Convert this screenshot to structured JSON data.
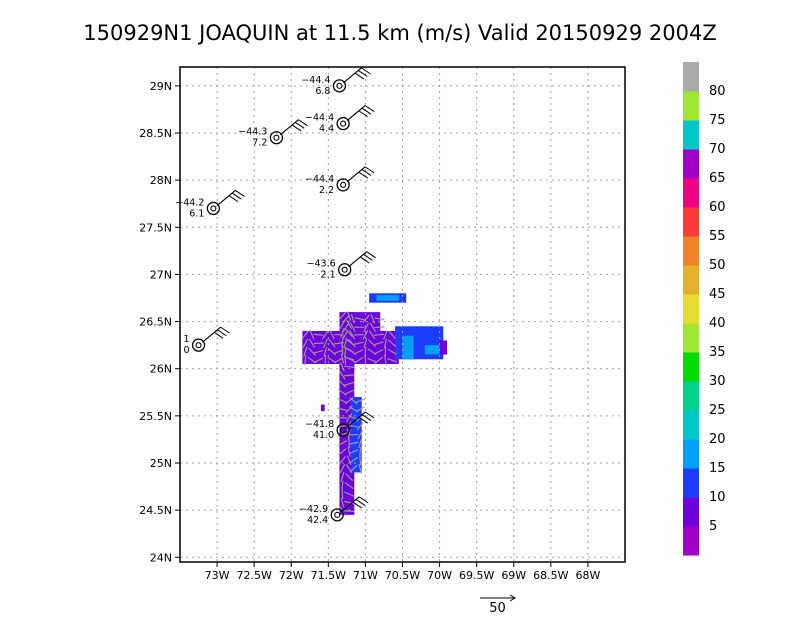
{
  "chart_data": {
    "type": "heatmap",
    "title": "150929N1  JOAQUIN at 11.5 km (m/s) Valid 20150929  2004Z",
    "x_ticks": [
      "73W",
      "72.5W",
      "72W",
      "71.5W",
      "71W",
      "70.5W",
      "70W",
      "69.5W",
      "69W",
      "68.5W",
      "68W"
    ],
    "y_ticks": [
      "24N",
      "24.5N",
      "25N",
      "25.5N",
      "26N",
      "26.5N",
      "27N",
      "27.5N",
      "28N",
      "28.5N",
      "29N"
    ],
    "xlim": [
      -73.5,
      -67.5
    ],
    "ylim": [
      23.95,
      29.2
    ],
    "grid": true,
    "colorbar": {
      "ticks": [
        "5",
        "10",
        "15",
        "20",
        "25",
        "30",
        "35",
        "40",
        "45",
        "50",
        "55",
        "60",
        "65",
        "70",
        "75",
        "80"
      ],
      "colors": [
        "#a000c8",
        "#6e00dc",
        "#1e3cff",
        "#00a0ff",
        "#00c8c8",
        "#00d28c",
        "#00dc00",
        "#a0e632",
        "#e6dc32",
        "#e6af2d",
        "#f08228",
        "#fa3c3c",
        "#f00082",
        "#a000c8",
        "#00c8c8",
        "#a0e632",
        "#aaaaaa"
      ]
    },
    "reference_vector": {
      "label": "50",
      "speed": 50
    },
    "observations": [
      {
        "lon": -71.35,
        "lat": 29.0,
        "top": "−44.4",
        "bottom": "6.8"
      },
      {
        "lon": -71.3,
        "lat": 28.6,
        "top": "−44.4",
        "bottom": "4.4"
      },
      {
        "lon": -72.2,
        "lat": 28.45,
        "top": "−44.3",
        "bottom": "7.2"
      },
      {
        "lon": -71.3,
        "lat": 27.95,
        "top": "−44.4",
        "bottom": "2.2"
      },
      {
        "lon": -73.05,
        "lat": 27.7,
        "top": "−44.2",
        "bottom": "6.1"
      },
      {
        "lon": -71.28,
        "lat": 27.05,
        "top": "−43.6",
        "bottom": "2.1"
      },
      {
        "lon": -73.25,
        "lat": 26.25,
        "top": "1",
        "bottom": "0"
      },
      {
        "lon": -71.3,
        "lat": 25.35,
        "top": "−41.8",
        "bottom": "41.0"
      },
      {
        "lon": -71.38,
        "lat": 24.45,
        "top": "−42.9",
        "bottom": "42.4"
      }
    ],
    "wind_field": [
      {
        "lon0": -71.35,
        "lon1": -71.15,
        "lat0": 24.45,
        "lat1": 26.6,
        "speed": 5
      },
      {
        "lon0": -71.85,
        "lon1": -70.55,
        "lat0": 26.05,
        "lat1": 26.4,
        "speed": 5
      },
      {
        "lon0": -71.3,
        "lon1": -70.8,
        "lat0": 26.4,
        "lat1": 26.6,
        "speed": 5
      },
      {
        "lon0": -71.2,
        "lon1": -71.05,
        "lat0": 24.9,
        "lat1": 25.7,
        "speed": 10
      },
      {
        "lon0": -70.6,
        "lon1": -69.95,
        "lat0": 26.1,
        "lat1": 26.45,
        "speed": 10
      },
      {
        "lon0": -70.0,
        "lon1": -69.9,
        "lat0": 26.15,
        "lat1": 26.3,
        "speed": 5
      },
      {
        "lon0": -70.5,
        "lon1": -70.35,
        "lat0": 26.1,
        "lat1": 26.35,
        "speed": 15
      },
      {
        "lon0": -70.2,
        "lon1": -70.0,
        "lat0": 26.15,
        "lat1": 26.25,
        "speed": 15
      },
      {
        "lon0": -70.95,
        "lon1": -70.45,
        "lat0": 26.7,
        "lat1": 26.8,
        "speed": 10
      },
      {
        "lon0": -70.85,
        "lon1": -70.55,
        "lat0": 26.72,
        "lat1": 26.78,
        "speed": 15
      },
      {
        "lon0": -71.6,
        "lon1": -71.55,
        "lat0": 25.55,
        "lat1": 25.62,
        "speed": 5
      }
    ]
  }
}
